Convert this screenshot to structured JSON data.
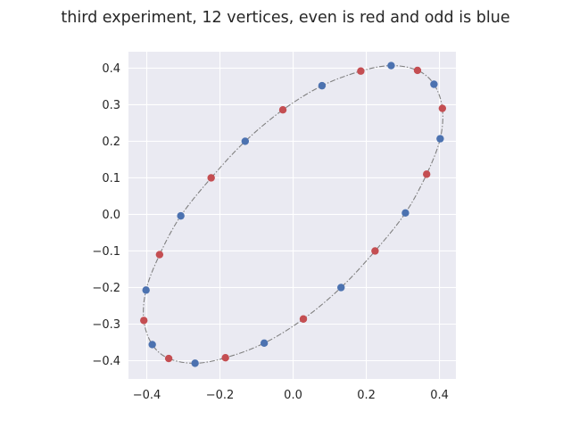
{
  "chart_data": {
    "type": "scatter",
    "title": "third experiment, 12 vertices, even is red and odd is blue",
    "xlabel": "",
    "ylabel": "",
    "xlim": [
      -0.45,
      0.445
    ],
    "ylim": [
      -0.45,
      0.445
    ],
    "x_ticks": [
      -0.4,
      -0.2,
      0.0,
      0.2,
      0.4
    ],
    "x_tick_labels": [
      "−0.4",
      "−0.2",
      "0.0",
      "0.2",
      "0.4"
    ],
    "y_ticks": [
      -0.4,
      -0.3,
      -0.2,
      -0.1,
      0.0,
      0.1,
      0.2,
      0.3,
      0.4
    ],
    "y_tick_labels": [
      "−0.4",
      "−0.3",
      "−0.2",
      "−0.1",
      "0.0",
      "0.1",
      "0.2",
      "0.3",
      "0.4"
    ],
    "grid": true,
    "legend": "none",
    "colors": {
      "background": "#eaeaf2",
      "grid": "#ffffff",
      "curve": "#808080",
      "even": "#c44e52",
      "odd": "#4c72b0"
    },
    "series": [
      {
        "color": "red",
        "x": [
          0.408,
          0.365,
          0.224,
          0.028,
          -0.185,
          -0.34,
          -0.408,
          -0.365,
          -0.224,
          -0.028,
          0.185,
          0.34
        ],
        "y": [
          0.29,
          0.11,
          -0.1,
          -0.286,
          -0.392,
          -0.394,
          -0.29,
          -0.11,
          0.1,
          0.286,
          0.392,
          0.394
        ]
      },
      {
        "color": "blue",
        "x": [
          0.402,
          0.307,
          0.131,
          -0.079,
          -0.268,
          -0.385,
          -0.402,
          -0.307,
          -0.131,
          0.079,
          0.268,
          0.385
        ],
        "y": [
          0.207,
          0.004,
          -0.2,
          -0.352,
          -0.407,
          -0.356,
          -0.207,
          -0.004,
          0.2,
          0.352,
          0.407,
          0.356
        ]
      }
    ],
    "curve": {
      "description_points_x": [
        0.408,
        0.402,
        0.365,
        0.307,
        0.224,
        0.131,
        0.028,
        -0.079,
        -0.185,
        -0.268,
        -0.34,
        -0.385,
        -0.408,
        -0.402,
        -0.365,
        -0.307,
        -0.224,
        -0.131,
        -0.028,
        0.079,
        0.185,
        0.268,
        0.34,
        0.385,
        0.408
      ],
      "description_points_y": [
        0.29,
        0.207,
        0.11,
        0.004,
        -0.1,
        -0.2,
        -0.286,
        -0.352,
        -0.392,
        -0.407,
        -0.394,
        -0.356,
        -0.29,
        -0.207,
        -0.11,
        -0.004,
        0.1,
        0.2,
        0.286,
        0.352,
        0.392,
        0.407,
        0.394,
        0.356,
        0.29
      ]
    }
  }
}
